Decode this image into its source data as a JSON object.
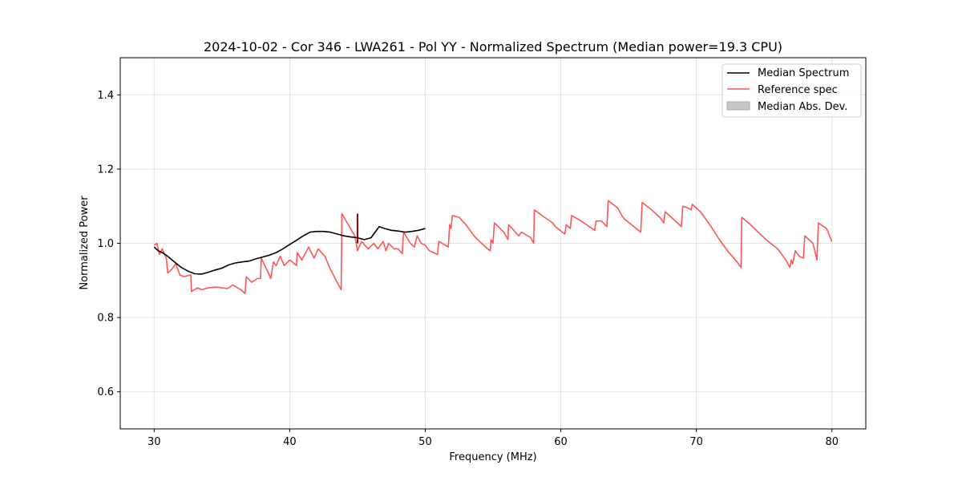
{
  "chart_data": {
    "type": "line",
    "title": "2024-10-02 - Cor 346 - LWA261 - Pol YY - Normalized Spectrum (Median power=19.3 CPU)",
    "xlabel": "Frequency (MHz)",
    "ylabel": "Normalized Power",
    "xlim": [
      27.5,
      82.5
    ],
    "ylim": [
      0.5,
      1.5
    ],
    "xticks": [
      30,
      40,
      50,
      60,
      70,
      80
    ],
    "yticks": [
      0.6,
      0.8,
      1.0,
      1.2,
      1.4
    ],
    "grid": true,
    "legend_position": "top-right",
    "legend": [
      {
        "label": "Median Spectrum",
        "kind": "line",
        "color": "#000000"
      },
      {
        "label": "Reference spec",
        "kind": "line",
        "color": "#ff5555"
      },
      {
        "label": "Median Abs. Dev.",
        "kind": "patch",
        "color": "#c8c8c8"
      }
    ],
    "series": [
      {
        "name": "Median Spectrum",
        "color": "#000000",
        "points": [
          [
            30.0,
            0.99
          ],
          [
            30.3,
            0.98
          ],
          [
            30.6,
            0.975
          ],
          [
            31.0,
            0.965
          ],
          [
            31.5,
            0.95
          ],
          [
            32.0,
            0.935
          ],
          [
            32.5,
            0.925
          ],
          [
            33.0,
            0.918
          ],
          [
            33.5,
            0.917
          ],
          [
            34.0,
            0.922
          ],
          [
            34.5,
            0.928
          ],
          [
            35.0,
            0.933
          ],
          [
            35.5,
            0.942
          ],
          [
            36.0,
            0.947
          ],
          [
            36.5,
            0.95
          ],
          [
            37.0,
            0.952
          ],
          [
            37.5,
            0.958
          ],
          [
            38.0,
            0.963
          ],
          [
            38.5,
            0.968
          ],
          [
            39.0,
            0.975
          ],
          [
            39.5,
            0.985
          ],
          [
            40.0,
            0.997
          ],
          [
            40.5,
            1.008
          ],
          [
            41.0,
            1.02
          ],
          [
            41.5,
            1.03
          ],
          [
            42.0,
            1.032
          ],
          [
            42.5,
            1.032
          ],
          [
            43.0,
            1.03
          ],
          [
            43.5,
            1.025
          ],
          [
            44.0,
            1.02
          ],
          [
            44.5,
            1.017
          ],
          [
            45.0,
            1.015
          ],
          [
            45.5,
            1.01
          ],
          [
            46.0,
            1.015
          ],
          [
            46.3,
            1.03
          ],
          [
            46.6,
            1.045
          ],
          [
            47.0,
            1.04
          ],
          [
            47.5,
            1.035
          ],
          [
            48.0,
            1.033
          ],
          [
            48.5,
            1.03
          ],
          [
            49.0,
            1.032
          ],
          [
            49.5,
            1.035
          ],
          [
            50.0,
            1.04
          ]
        ]
      },
      {
        "name": "Reference spec",
        "color": "#ff5555",
        "points": [
          [
            30.0,
            0.995
          ],
          [
            30.2,
            1.0
          ],
          [
            30.4,
            0.97
          ],
          [
            30.6,
            0.985
          ],
          [
            30.9,
            0.96
          ],
          [
            31.0,
            0.92
          ],
          [
            31.3,
            0.93
          ],
          [
            31.6,
            0.945
          ],
          [
            31.9,
            0.915
          ],
          [
            32.2,
            0.91
          ],
          [
            32.7,
            0.915
          ],
          [
            32.75,
            0.87
          ],
          [
            33.2,
            0.88
          ],
          [
            33.5,
            0.875
          ],
          [
            34.0,
            0.88
          ],
          [
            34.6,
            0.882
          ],
          [
            35.4,
            0.878
          ],
          [
            35.8,
            0.888
          ],
          [
            36.4,
            0.875
          ],
          [
            36.7,
            0.865
          ],
          [
            36.8,
            0.91
          ],
          [
            37.2,
            0.895
          ],
          [
            37.6,
            0.905
          ],
          [
            37.85,
            0.905
          ],
          [
            37.9,
            0.96
          ],
          [
            38.3,
            0.93
          ],
          [
            38.6,
            0.905
          ],
          [
            38.8,
            0.95
          ],
          [
            39.0,
            0.94
          ],
          [
            39.3,
            0.965
          ],
          [
            39.6,
            0.94
          ],
          [
            40.0,
            0.955
          ],
          [
            40.5,
            0.94
          ],
          [
            40.55,
            0.975
          ],
          [
            40.9,
            0.955
          ],
          [
            41.4,
            0.99
          ],
          [
            41.8,
            0.96
          ],
          [
            42.1,
            0.985
          ],
          [
            42.6,
            0.965
          ],
          [
            43.0,
            0.93
          ],
          [
            43.5,
            0.895
          ],
          [
            43.8,
            0.875
          ],
          [
            43.85,
            1.08
          ],
          [
            44.4,
            1.045
          ],
          [
            44.8,
            1.02
          ],
          [
            45.0,
            0.98
          ],
          [
            45.3,
            1.005
          ],
          [
            45.8,
            0.985
          ],
          [
            46.2,
            1.0
          ],
          [
            46.5,
            0.985
          ],
          [
            46.9,
            1.005
          ],
          [
            47.1,
            0.98
          ],
          [
            47.3,
            1.0
          ],
          [
            47.7,
            0.985
          ],
          [
            48.0,
            0.985
          ],
          [
            48.3,
            0.972
          ],
          [
            48.4,
            1.03
          ],
          [
            48.9,
            1.0
          ],
          [
            49.2,
            0.99
          ],
          [
            49.4,
            1.02
          ],
          [
            49.7,
            1.0
          ],
          [
            50.0,
            0.995
          ],
          [
            50.3,
            0.98
          ],
          [
            50.9,
            0.97
          ],
          [
            51.0,
            1.005
          ],
          [
            51.7,
            0.99
          ],
          [
            51.8,
            1.05
          ],
          [
            51.9,
            1.04
          ],
          [
            52.0,
            1.075
          ],
          [
            52.5,
            1.07
          ],
          [
            53.0,
            1.05
          ],
          [
            53.6,
            1.02
          ],
          [
            54.0,
            1.005
          ],
          [
            54.6,
            0.985
          ],
          [
            54.8,
            0.98
          ],
          [
            54.85,
            1.01
          ],
          [
            55.0,
            1.0
          ],
          [
            55.1,
            1.055
          ],
          [
            55.8,
            1.03
          ],
          [
            56.1,
            1.01
          ],
          [
            56.15,
            1.05
          ],
          [
            56.9,
            1.02
          ],
          [
            57.1,
            1.03
          ],
          [
            57.8,
            1.015
          ],
          [
            58.0,
            1.0
          ],
          [
            58.05,
            1.09
          ],
          [
            58.8,
            1.07
          ],
          [
            59.4,
            1.055
          ],
          [
            59.6,
            1.045
          ],
          [
            60.3,
            1.025
          ],
          [
            60.4,
            1.05
          ],
          [
            60.7,
            1.04
          ],
          [
            60.8,
            1.075
          ],
          [
            61.5,
            1.06
          ],
          [
            62.3,
            1.04
          ],
          [
            62.5,
            1.035
          ],
          [
            62.6,
            1.06
          ],
          [
            63.0,
            1.06
          ],
          [
            63.4,
            1.045
          ],
          [
            63.5,
            1.115
          ],
          [
            64.2,
            1.095
          ],
          [
            64.5,
            1.075
          ],
          [
            64.7,
            1.065
          ],
          [
            65.4,
            1.045
          ],
          [
            65.9,
            1.03
          ],
          [
            66.0,
            1.11
          ],
          [
            66.7,
            1.09
          ],
          [
            67.3,
            1.07
          ],
          [
            67.6,
            1.055
          ],
          [
            67.7,
            1.085
          ],
          [
            68.3,
            1.065
          ],
          [
            68.9,
            1.045
          ],
          [
            69.0,
            1.1
          ],
          [
            69.4,
            1.095
          ],
          [
            69.6,
            1.09
          ],
          [
            69.7,
            1.105
          ],
          [
            70.3,
            1.085
          ],
          [
            71.0,
            1.05
          ],
          [
            71.7,
            1.01
          ],
          [
            72.3,
            0.98
          ],
          [
            73.0,
            0.95
          ],
          [
            73.3,
            0.935
          ],
          [
            73.35,
            1.07
          ],
          [
            74.0,
            1.05
          ],
          [
            74.7,
            1.025
          ],
          [
            75.3,
            1.005
          ],
          [
            76.0,
            0.985
          ],
          [
            76.6,
            0.955
          ],
          [
            76.9,
            0.935
          ],
          [
            77.0,
            0.955
          ],
          [
            77.1,
            0.945
          ],
          [
            77.3,
            0.98
          ],
          [
            77.6,
            0.965
          ],
          [
            77.9,
            0.96
          ],
          [
            78.0,
            1.02
          ],
          [
            78.6,
            1.0
          ],
          [
            78.9,
            0.955
          ],
          [
            79.0,
            1.055
          ],
          [
            79.4,
            1.045
          ],
          [
            79.6,
            1.04
          ],
          [
            80.0,
            1.005
          ]
        ]
      }
    ],
    "annotations": [
      {
        "type": "spike",
        "x": 45.0,
        "from": 1.0,
        "to": 1.08,
        "color": "#8b0000"
      }
    ]
  }
}
